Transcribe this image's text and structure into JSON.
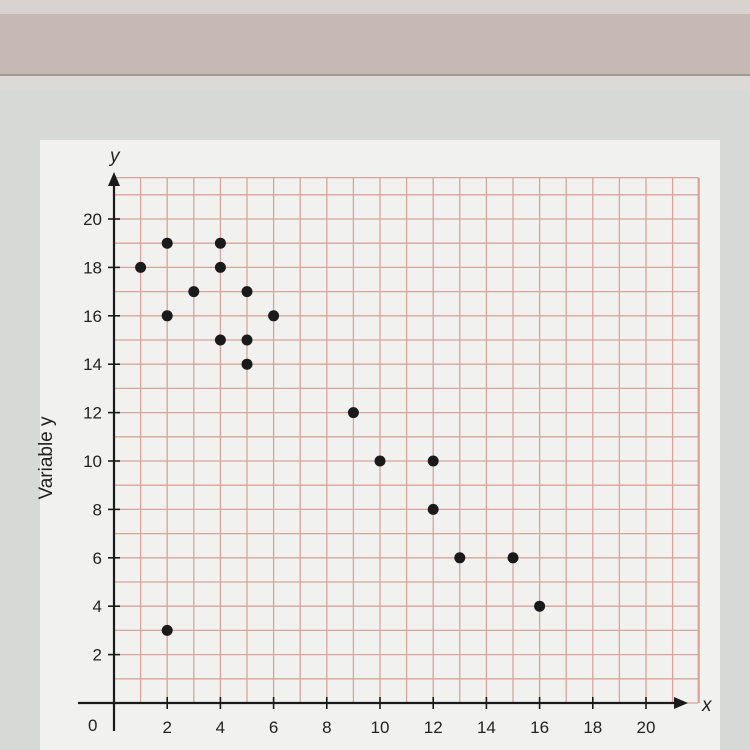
{
  "chart_data": {
    "type": "scatter",
    "title": "",
    "xlabel": "",
    "ylabel": "Variable y",
    "x_axis_letter": "x",
    "y_axis_letter": "y",
    "origin_label": "0",
    "xlim": [
      0,
      22
    ],
    "ylim": [
      0,
      22
    ],
    "grid": true,
    "x_ticks": [
      "2",
      "4",
      "6",
      "8",
      "10",
      "12",
      "14",
      "16",
      "18",
      "20"
    ],
    "y_ticks": [
      "2",
      "4",
      "6",
      "8",
      "10",
      "12",
      "14",
      "16",
      "18",
      "20"
    ],
    "points": [
      {
        "x": 1,
        "y": 18
      },
      {
        "x": 2,
        "y": 19
      },
      {
        "x": 2,
        "y": 16
      },
      {
        "x": 3,
        "y": 17
      },
      {
        "x": 4,
        "y": 19
      },
      {
        "x": 4,
        "y": 18
      },
      {
        "x": 4,
        "y": 15
      },
      {
        "x": 5,
        "y": 17
      },
      {
        "x": 5,
        "y": 15
      },
      {
        "x": 5,
        "y": 14
      },
      {
        "x": 6,
        "y": 16
      },
      {
        "x": 9,
        "y": 12
      },
      {
        "x": 10,
        "y": 10
      },
      {
        "x": 12,
        "y": 10
      },
      {
        "x": 12,
        "y": 8
      },
      {
        "x": 13,
        "y": 6
      },
      {
        "x": 15,
        "y": 6
      },
      {
        "x": 16,
        "y": 4
      },
      {
        "x": 2,
        "y": 3
      }
    ],
    "colors": {
      "grid": "#d9a49a",
      "axis": "#1a1a1a",
      "point": "#1a1a1a",
      "paper": "#f1f2ef"
    }
  }
}
